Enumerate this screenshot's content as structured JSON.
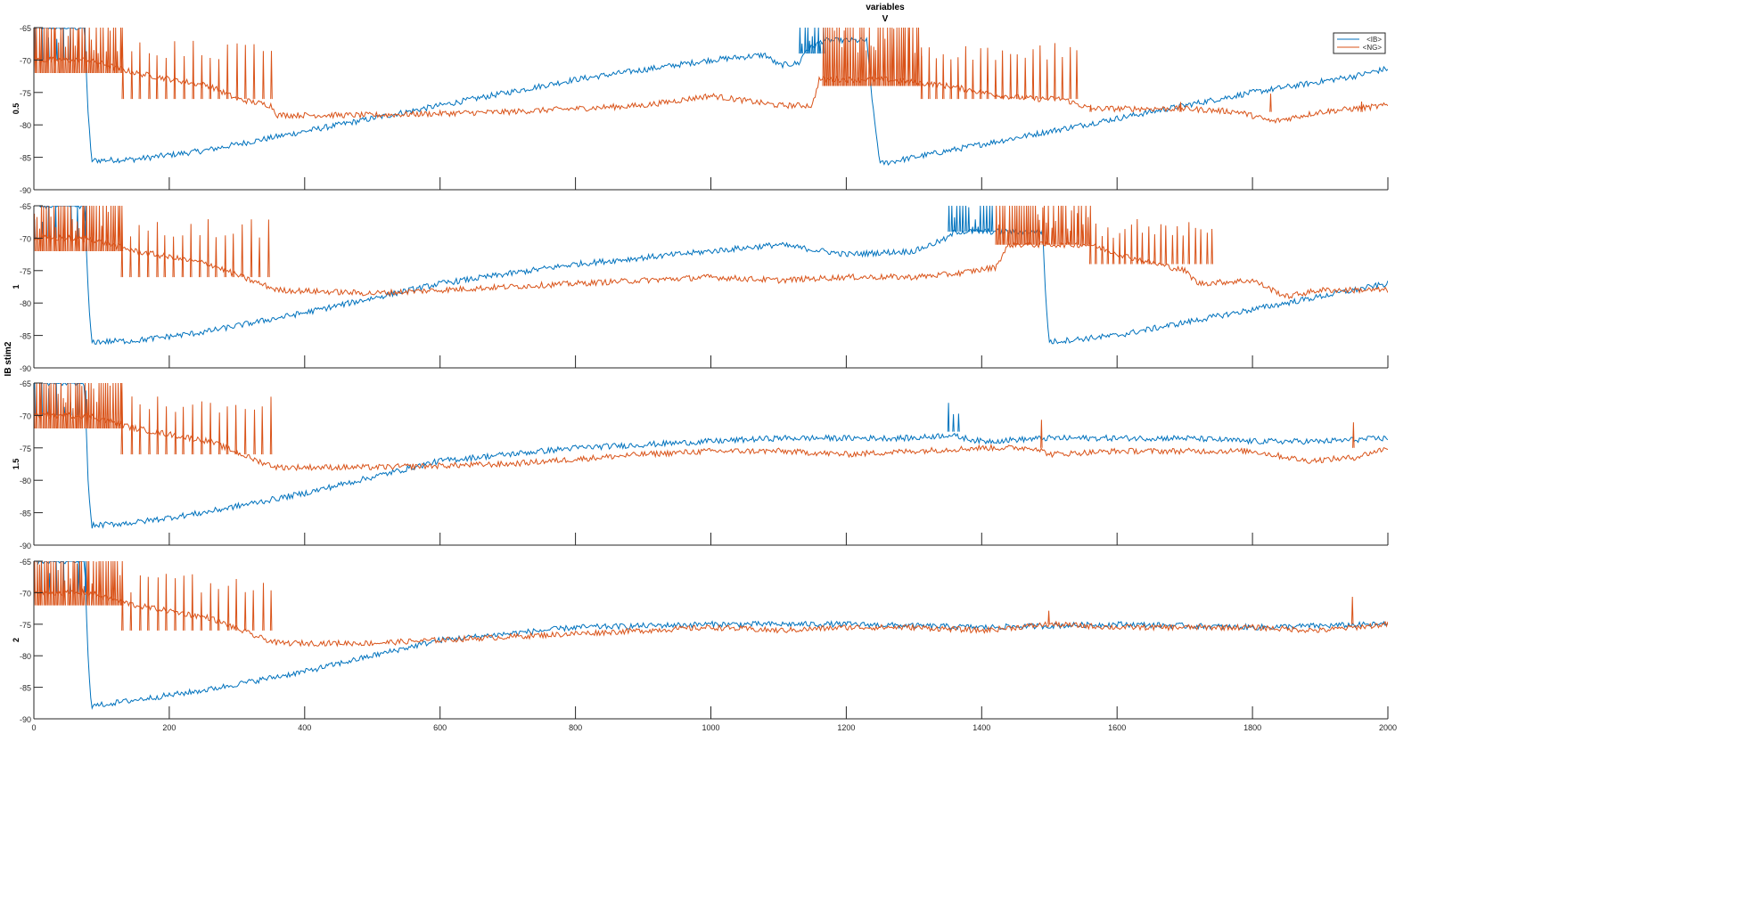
{
  "figure": {
    "title_line1": "variables",
    "title_line2": "V",
    "row_group_label": "IB stim2"
  },
  "legend": [
    {
      "label": "<IB>",
      "color": "#0072BD"
    },
    {
      "label": "<NG>",
      "color": "#D95319"
    }
  ],
  "chart_data": [
    {
      "type": "line",
      "panel_label": "0.5",
      "xlim": [
        0,
        2000
      ],
      "ylim": [
        -90,
        -65
      ],
      "xticks": [
        200,
        400,
        600,
        800,
        1000,
        1200,
        1400,
        1600,
        1800,
        2000
      ],
      "yticks": [
        -90,
        -85,
        -80,
        -75,
        -70,
        -65
      ],
      "tick_labels_x": [],
      "series": [
        {
          "name": "<IB>",
          "color": "#0072BD",
          "x": [
            0,
            75,
            80,
            85,
            150,
            250,
            400,
            600,
            800,
            1000,
            1080,
            1100,
            1130,
            1140,
            1150,
            1165,
            1230,
            1240,
            1250,
            1350,
            1500,
            1650,
            1800,
            1950,
            2000
          ],
          "y": [
            -65,
            -65,
            -78,
            -85.5,
            -85.3,
            -84,
            -81,
            -77,
            -73,
            -70,
            -69.2,
            -70.8,
            -70.5,
            -68.5,
            -68,
            -67,
            -67,
            -78,
            -86,
            -84,
            -81,
            -78,
            -75,
            -72.5,
            -71.3
          ],
          "spikes": [
            {
              "x0": 1130,
              "x1": 1165,
              "n": 10,
              "base": -69,
              "peak": -65
            },
            {
              "x0": 0,
              "x1": 75,
              "n": 8,
              "base": -70,
              "peak": -65
            }
          ]
        },
        {
          "name": "<NG>",
          "color": "#D95319",
          "x": [
            0,
            80,
            150,
            260,
            300,
            350,
            360,
            500,
            700,
            900,
            1000,
            1100,
            1150,
            1160,
            1260,
            1350,
            1430,
            1480,
            1520,
            1560,
            1600,
            1700,
            1780,
            1830,
            1900,
            2000
          ],
          "y": [
            -70,
            -70,
            -72,
            -74,
            -76,
            -77,
            -78.5,
            -78.5,
            -78,
            -77,
            -75.5,
            -77,
            -77,
            -73,
            -73,
            -74,
            -75.5,
            -76,
            -76,
            -77.5,
            -77.5,
            -77.5,
            -78,
            -79.5,
            -78,
            -77
          ],
          "spikes": [
            {
              "x0": 0,
              "x1": 130,
              "n": 38,
              "base": -72,
              "peak": -65
            },
            {
              "x0": 130,
              "x1": 350,
              "n": 18,
              "base": -76,
              "peak": -67
            },
            {
              "x0": 1165,
              "x1": 1310,
              "n": 44,
              "base": -74,
              "peak": -65
            },
            {
              "x0": 1310,
              "x1": 1540,
              "n": 22,
              "base": -76,
              "peak": -67
            },
            {
              "x0": 1560,
              "x1": 1960,
              "n": 4,
              "base": -78,
              "peak": -74
            }
          ]
        }
      ]
    },
    {
      "type": "line",
      "panel_label": "1",
      "xlim": [
        0,
        2000
      ],
      "ylim": [
        -90,
        -65
      ],
      "xticks": [
        200,
        400,
        600,
        800,
        1000,
        1200,
        1400,
        1600,
        1800,
        2000
      ],
      "yticks": [
        -90,
        -85,
        -80,
        -75,
        -70,
        -65
      ],
      "tick_labels_x": [],
      "series": [
        {
          "name": "<IB>",
          "color": "#0072BD",
          "x": [
            0,
            75,
            80,
            85,
            150,
            250,
            400,
            600,
            800,
            1000,
            1100,
            1200,
            1300,
            1350,
            1360,
            1415,
            1490,
            1495,
            1500,
            1600,
            1700,
            1800,
            1900,
            2000
          ],
          "y": [
            -65,
            -65,
            -78,
            -86,
            -85.8,
            -84.5,
            -81.5,
            -77,
            -74,
            -72,
            -71,
            -72.5,
            -72,
            -70,
            -69,
            -69,
            -69,
            -80,
            -86,
            -85,
            -83,
            -81,
            -79,
            -77
          ],
          "spikes": [
            {
              "x0": 1350,
              "x1": 1415,
              "n": 16,
              "base": -69,
              "peak": -65
            },
            {
              "x0": 0,
              "x1": 75,
              "n": 8,
              "base": -70,
              "peak": -65
            }
          ]
        },
        {
          "name": "<NG>",
          "color": "#D95319",
          "x": [
            0,
            80,
            150,
            260,
            320,
            360,
            500,
            700,
            900,
            1000,
            1100,
            1200,
            1300,
            1360,
            1420,
            1440,
            1560,
            1620,
            1700,
            1720,
            1800,
            1850,
            1900,
            2000
          ],
          "y": [
            -70,
            -70,
            -72,
            -74,
            -76.5,
            -78,
            -78.5,
            -77.5,
            -76.5,
            -76,
            -76.5,
            -76,
            -76,
            -75.5,
            -74.5,
            -71,
            -71,
            -73,
            -75,
            -77,
            -76.5,
            -79,
            -78,
            -78
          ],
          "spikes": [
            {
              "x0": 0,
              "x1": 130,
              "n": 38,
              "base": -72,
              "peak": -65
            },
            {
              "x0": 130,
              "x1": 345,
              "n": 18,
              "base": -76,
              "peak": -67
            },
            {
              "x0": 1420,
              "x1": 1560,
              "n": 42,
              "base": -71,
              "peak": -65
            },
            {
              "x0": 1560,
              "x1": 1740,
              "n": 22,
              "base": -74,
              "peak": -67
            }
          ]
        }
      ]
    },
    {
      "type": "line",
      "panel_label": "1.5",
      "xlim": [
        0,
        2000
      ],
      "ylim": [
        -90,
        -65
      ],
      "xticks": [
        200,
        400,
        600,
        800,
        1000,
        1200,
        1400,
        1600,
        1800,
        2000
      ],
      "yticks": [
        -90,
        -85,
        -80,
        -75,
        -70,
        -65
      ],
      "tick_labels_x": [],
      "series": [
        {
          "name": "<IB>",
          "color": "#0072BD",
          "x": [
            0,
            75,
            80,
            85,
            150,
            250,
            400,
            600,
            800,
            1000,
            1100,
            1300,
            1350,
            1400,
            1500,
            1600,
            1700,
            1800,
            1900,
            2000
          ],
          "y": [
            -65,
            -65,
            -80,
            -87,
            -86.5,
            -85,
            -82,
            -77,
            -75,
            -74,
            -73.5,
            -73.5,
            -73,
            -74,
            -73.5,
            -73.5,
            -73.5,
            -74,
            -74,
            -73.5
          ],
          "spikes": [
            {
              "x0": 1350,
              "x1": 1365,
              "n": 3,
              "base": -72.5,
              "peak": -67.5
            },
            {
              "x0": 0,
              "x1": 75,
              "n": 8,
              "base": -70,
              "peak": -65
            }
          ]
        },
        {
          "name": "<NG>",
          "color": "#D95319",
          "x": [
            0,
            80,
            150,
            260,
            330,
            360,
            500,
            700,
            900,
            1000,
            1100,
            1200,
            1300,
            1400,
            1480,
            1500,
            1600,
            1700,
            1800,
            1880,
            1950,
            2000
          ],
          "y": [
            -70,
            -70,
            -72,
            -74,
            -77,
            -78,
            -78,
            -77.5,
            -76,
            -75.5,
            -75.5,
            -76,
            -75.5,
            -75,
            -75,
            -76,
            -75.5,
            -75.5,
            -75.5,
            -77,
            -76.5,
            -75
          ],
          "spikes": [
            {
              "x0": 0,
              "x1": 130,
              "n": 38,
              "base": -72,
              "peak": -65
            },
            {
              "x0": 130,
              "x1": 350,
              "n": 18,
              "base": -76,
              "peak": -67
            },
            {
              "x0": 1486,
              "x1": 1490,
              "n": 1,
              "base": -75,
              "peak": -69
            },
            {
              "x0": 1945,
              "x1": 1950,
              "n": 1,
              "base": -75,
              "peak": -70
            }
          ]
        }
      ]
    },
    {
      "type": "line",
      "panel_label": "2",
      "xlim": [
        0,
        2000
      ],
      "ylim": [
        -90,
        -65
      ],
      "xticks": [
        0,
        200,
        400,
        600,
        800,
        1000,
        1200,
        1400,
        1600,
        1800,
        2000
      ],
      "yticks": [
        -90,
        -85,
        -80,
        -75,
        -70,
        -65
      ],
      "tick_labels_x": [
        "0",
        "200",
        "400",
        "600",
        "800",
        "1000",
        "1200",
        "1400",
        "1600",
        "1800",
        "2000"
      ],
      "series": [
        {
          "name": "<IB>",
          "color": "#0072BD",
          "x": [
            0,
            75,
            80,
            85,
            150,
            250,
            400,
            600,
            800,
            1000,
            1200,
            1400,
            1600,
            1800,
            2000
          ],
          "y": [
            -65,
            -65,
            -80,
            -88,
            -87,
            -85.5,
            -82.5,
            -77.5,
            -75.5,
            -75,
            -75,
            -75.5,
            -75,
            -75.5,
            -75
          ],
          "spikes": [
            {
              "x0": 0,
              "x1": 75,
              "n": 8,
              "base": -70,
              "peak": -65
            }
          ]
        },
        {
          "name": "<NG>",
          "color": "#D95319",
          "x": [
            0,
            80,
            150,
            260,
            330,
            360,
            500,
            700,
            900,
            1000,
            1100,
            1200,
            1300,
            1400,
            1500,
            1600,
            1700,
            1800,
            1900,
            2000
          ],
          "y": [
            -70,
            -70,
            -72,
            -74,
            -77,
            -78,
            -78,
            -77,
            -76,
            -75.5,
            -76,
            -75.5,
            -75.5,
            -76,
            -75,
            -75.5,
            -75.5,
            -75.5,
            -76,
            -75
          ],
          "spikes": [
            {
              "x0": 0,
              "x1": 130,
              "n": 38,
              "base": -72,
              "peak": -65
            },
            {
              "x0": 130,
              "x1": 350,
              "n": 18,
              "base": -76,
              "peak": -67
            },
            {
              "x0": 1495,
              "x1": 1500,
              "n": 1,
              "base": -75,
              "peak": -70
            },
            {
              "x0": 1945,
              "x1": 1950,
              "n": 1,
              "base": -75,
              "peak": -70
            }
          ]
        }
      ]
    }
  ]
}
